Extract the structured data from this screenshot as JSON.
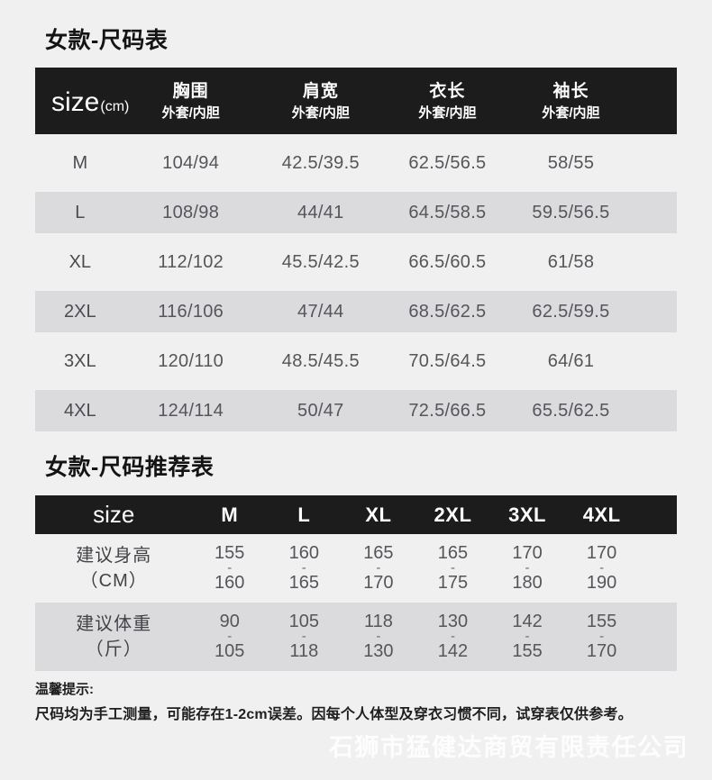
{
  "page": {
    "background": "#f0f0f0",
    "header_black": "#1c1c1c",
    "stripe_color": "#dbdbde"
  },
  "section1": {
    "title": "女款-尺码表",
    "table": {
      "size_header": {
        "main": "size",
        "unit": "(cm)"
      },
      "columns": [
        {
          "name": "胸围",
          "sub": "外套/内胆"
        },
        {
          "name": "肩宽",
          "sub": "外套/内胆"
        },
        {
          "name": "衣长",
          "sub": "外套/内胆"
        },
        {
          "name": "袖长",
          "sub": "外套/内胆"
        }
      ],
      "rows": [
        {
          "size": "M",
          "values": [
            "104/94",
            "42.5/39.5",
            "62.5/56.5",
            "58/55"
          ]
        },
        {
          "size": "L",
          "values": [
            "108/98",
            "44/41",
            "64.5/58.5",
            "59.5/56.5"
          ]
        },
        {
          "size": "XL",
          "values": [
            "112/102",
            "45.5/42.5",
            "66.5/60.5",
            "61/58"
          ]
        },
        {
          "size": "2XL",
          "values": [
            "116/106",
            "47/44",
            "68.5/62.5",
            "62.5/59.5"
          ]
        },
        {
          "size": "3XL",
          "values": [
            "120/110",
            "48.5/45.5",
            "70.5/64.5",
            "64/61"
          ]
        },
        {
          "size": "4XL",
          "values": [
            "124/114",
            "50/47",
            "72.5/66.5",
            "65.5/62.5"
          ]
        }
      ]
    }
  },
  "section2": {
    "title": "女款-尺码推荐表",
    "table": {
      "size_header": "size",
      "columns": [
        "M",
        "L",
        "XL",
        "2XL",
        "3XL",
        "4XL"
      ],
      "separator": "-",
      "rows": [
        {
          "label": "建议身高",
          "unit": "（CM）",
          "ranges": [
            {
              "min": "155",
              "max": "160"
            },
            {
              "min": "160",
              "max": "165"
            },
            {
              "min": "165",
              "max": "170"
            },
            {
              "min": "165",
              "max": "175"
            },
            {
              "min": "170",
              "max": "180"
            },
            {
              "min": "170",
              "max": "190"
            }
          ]
        },
        {
          "label": "建议体重",
          "unit": "（斤）",
          "ranges": [
            {
              "min": "90",
              "max": "105"
            },
            {
              "min": "105",
              "max": "118"
            },
            {
              "min": "118",
              "max": "130"
            },
            {
              "min": "130",
              "max": "142"
            },
            {
              "min": "142",
              "max": "155"
            },
            {
              "min": "155",
              "max": "170"
            }
          ]
        }
      ]
    }
  },
  "footer": {
    "tips_title": "温馨提示:",
    "tips_body": "尺码均为手工测量，可能存在1-2cm误差。因每个人体型及穿衣习惯不同，试穿表仅供参考。",
    "watermark": "石狮市猛健达商贸有限责任公司"
  }
}
